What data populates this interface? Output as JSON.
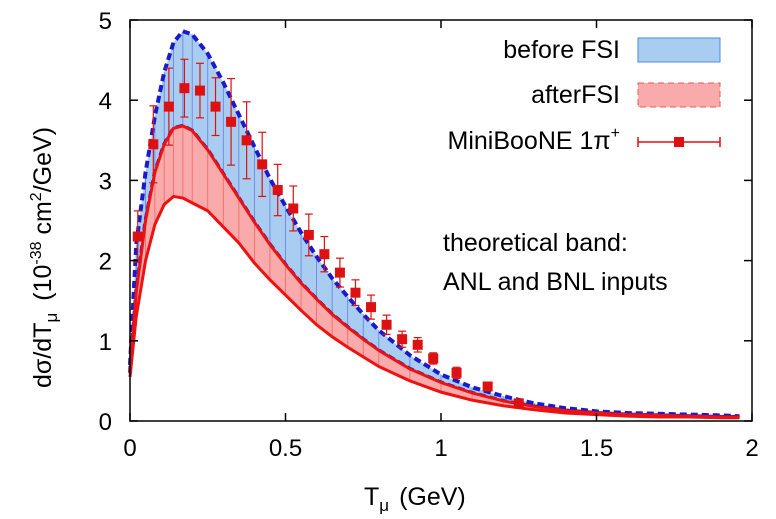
{
  "chart_data": {
    "type": "line",
    "xlabel_main": "T",
    "xlabel_sub": "μ",
    "xlabel_unit": "(GeV)",
    "ylabel_pre": "dσ/dT",
    "ylabel_sub": "μ",
    "ylabel_unit_open": "(10",
    "ylabel_exp1": "-38",
    "ylabel_unit_mid": " cm",
    "ylabel_exp2": "2",
    "ylabel_unit_close": "/GeV)",
    "xlim": [
      0,
      2
    ],
    "ylim": [
      0,
      5
    ],
    "x_ticks": [
      0,
      0.5,
      1,
      1.5,
      2
    ],
    "x_tick_labels": [
      "0",
      "0.5",
      "1",
      "1.5",
      "2"
    ],
    "y_ticks": [
      0,
      1,
      2,
      3,
      4,
      5
    ],
    "y_tick_labels": [
      "0",
      "1",
      "2",
      "3",
      "4",
      "5"
    ],
    "grid": false,
    "legend_position": "top-right",
    "colors": {
      "before_fill": "#a9cdf0",
      "before_line": "#1a1acc",
      "after_fill": "#f9aaaa",
      "after_line": "#ee1111",
      "data_points": "#dd1111"
    },
    "bands": [
      {
        "name": "before FSI",
        "x": [
          0,
          0.02,
          0.05,
          0.08,
          0.11,
          0.14,
          0.17,
          0.2,
          0.25,
          0.3,
          0.35,
          0.4,
          0.45,
          0.5,
          0.55,
          0.6,
          0.65,
          0.7,
          0.75,
          0.8,
          0.9,
          1.0,
          1.1,
          1.2,
          1.3,
          1.4,
          1.5,
          1.6,
          1.7,
          1.8,
          1.9,
          1.96
        ],
        "upper": [
          0.7,
          2.2,
          3.1,
          3.8,
          4.35,
          4.72,
          4.86,
          4.82,
          4.58,
          4.22,
          3.82,
          3.42,
          3.02,
          2.68,
          2.35,
          2.05,
          1.78,
          1.55,
          1.33,
          1.13,
          0.82,
          0.58,
          0.42,
          0.31,
          0.22,
          0.16,
          0.12,
          0.1,
          0.09,
          0.08,
          0.07,
          0.06
        ],
        "lower": [
          0.6,
          1.6,
          2.5,
          3.1,
          3.45,
          3.65,
          3.68,
          3.62,
          3.38,
          3.08,
          2.78,
          2.48,
          2.2,
          1.95,
          1.72,
          1.52,
          1.33,
          1.17,
          1.02,
          0.88,
          0.65,
          0.48,
          0.35,
          0.25,
          0.18,
          0.13,
          0.1,
          0.08,
          0.07,
          0.06,
          0.05,
          0.05
        ]
      },
      {
        "name": "afterFSI",
        "x": [
          0,
          0.02,
          0.05,
          0.08,
          0.11,
          0.14,
          0.17,
          0.2,
          0.25,
          0.3,
          0.35,
          0.4,
          0.45,
          0.5,
          0.55,
          0.6,
          0.65,
          0.7,
          0.75,
          0.8,
          0.9,
          1.0,
          1.1,
          1.2,
          1.3,
          1.4,
          1.5,
          1.6,
          1.7,
          1.8,
          1.9,
          1.96
        ],
        "upper": [
          0.6,
          1.6,
          2.5,
          3.1,
          3.45,
          3.65,
          3.68,
          3.62,
          3.38,
          3.08,
          2.78,
          2.48,
          2.2,
          1.95,
          1.72,
          1.52,
          1.33,
          1.17,
          1.02,
          0.88,
          0.65,
          0.48,
          0.35,
          0.25,
          0.18,
          0.13,
          0.1,
          0.08,
          0.07,
          0.06,
          0.05,
          0.05
        ],
        "lower": [
          0.55,
          1.3,
          2.0,
          2.45,
          2.7,
          2.8,
          2.78,
          2.72,
          2.62,
          2.42,
          2.22,
          1.97,
          1.76,
          1.57,
          1.38,
          1.2,
          1.05,
          0.92,
          0.8,
          0.68,
          0.5,
          0.36,
          0.26,
          0.19,
          0.14,
          0.1,
          0.08,
          0.06,
          0.05,
          0.05,
          0.04,
          0.04
        ]
      }
    ],
    "data_series": {
      "name": "MiniBooNE 1π",
      "name_sup": "+",
      "x": [
        0.025,
        0.075,
        0.125,
        0.175,
        0.225,
        0.275,
        0.325,
        0.375,
        0.425,
        0.475,
        0.525,
        0.575,
        0.625,
        0.675,
        0.725,
        0.775,
        0.825,
        0.875,
        0.925,
        0.975,
        1.05,
        1.15,
        1.25
      ],
      "y": [
        2.3,
        3.45,
        3.92,
        4.15,
        4.12,
        3.92,
        3.73,
        3.5,
        3.2,
        2.88,
        2.65,
        2.32,
        2.08,
        1.85,
        1.6,
        1.42,
        1.2,
        1.02,
        0.95,
        0.78,
        0.6,
        0.43,
        0.22
      ],
      "err": [
        0.32,
        0.48,
        0.48,
        0.36,
        0.34,
        0.36,
        0.54,
        0.48,
        0.4,
        0.32,
        0.28,
        0.26,
        0.22,
        0.18,
        0.16,
        0.15,
        0.12,
        0.1,
        0.09,
        0.07,
        0.07,
        0.05,
        0.04
      ]
    },
    "annotation": [
      "theoretical band:",
      "ANL and BNL inputs"
    ]
  }
}
